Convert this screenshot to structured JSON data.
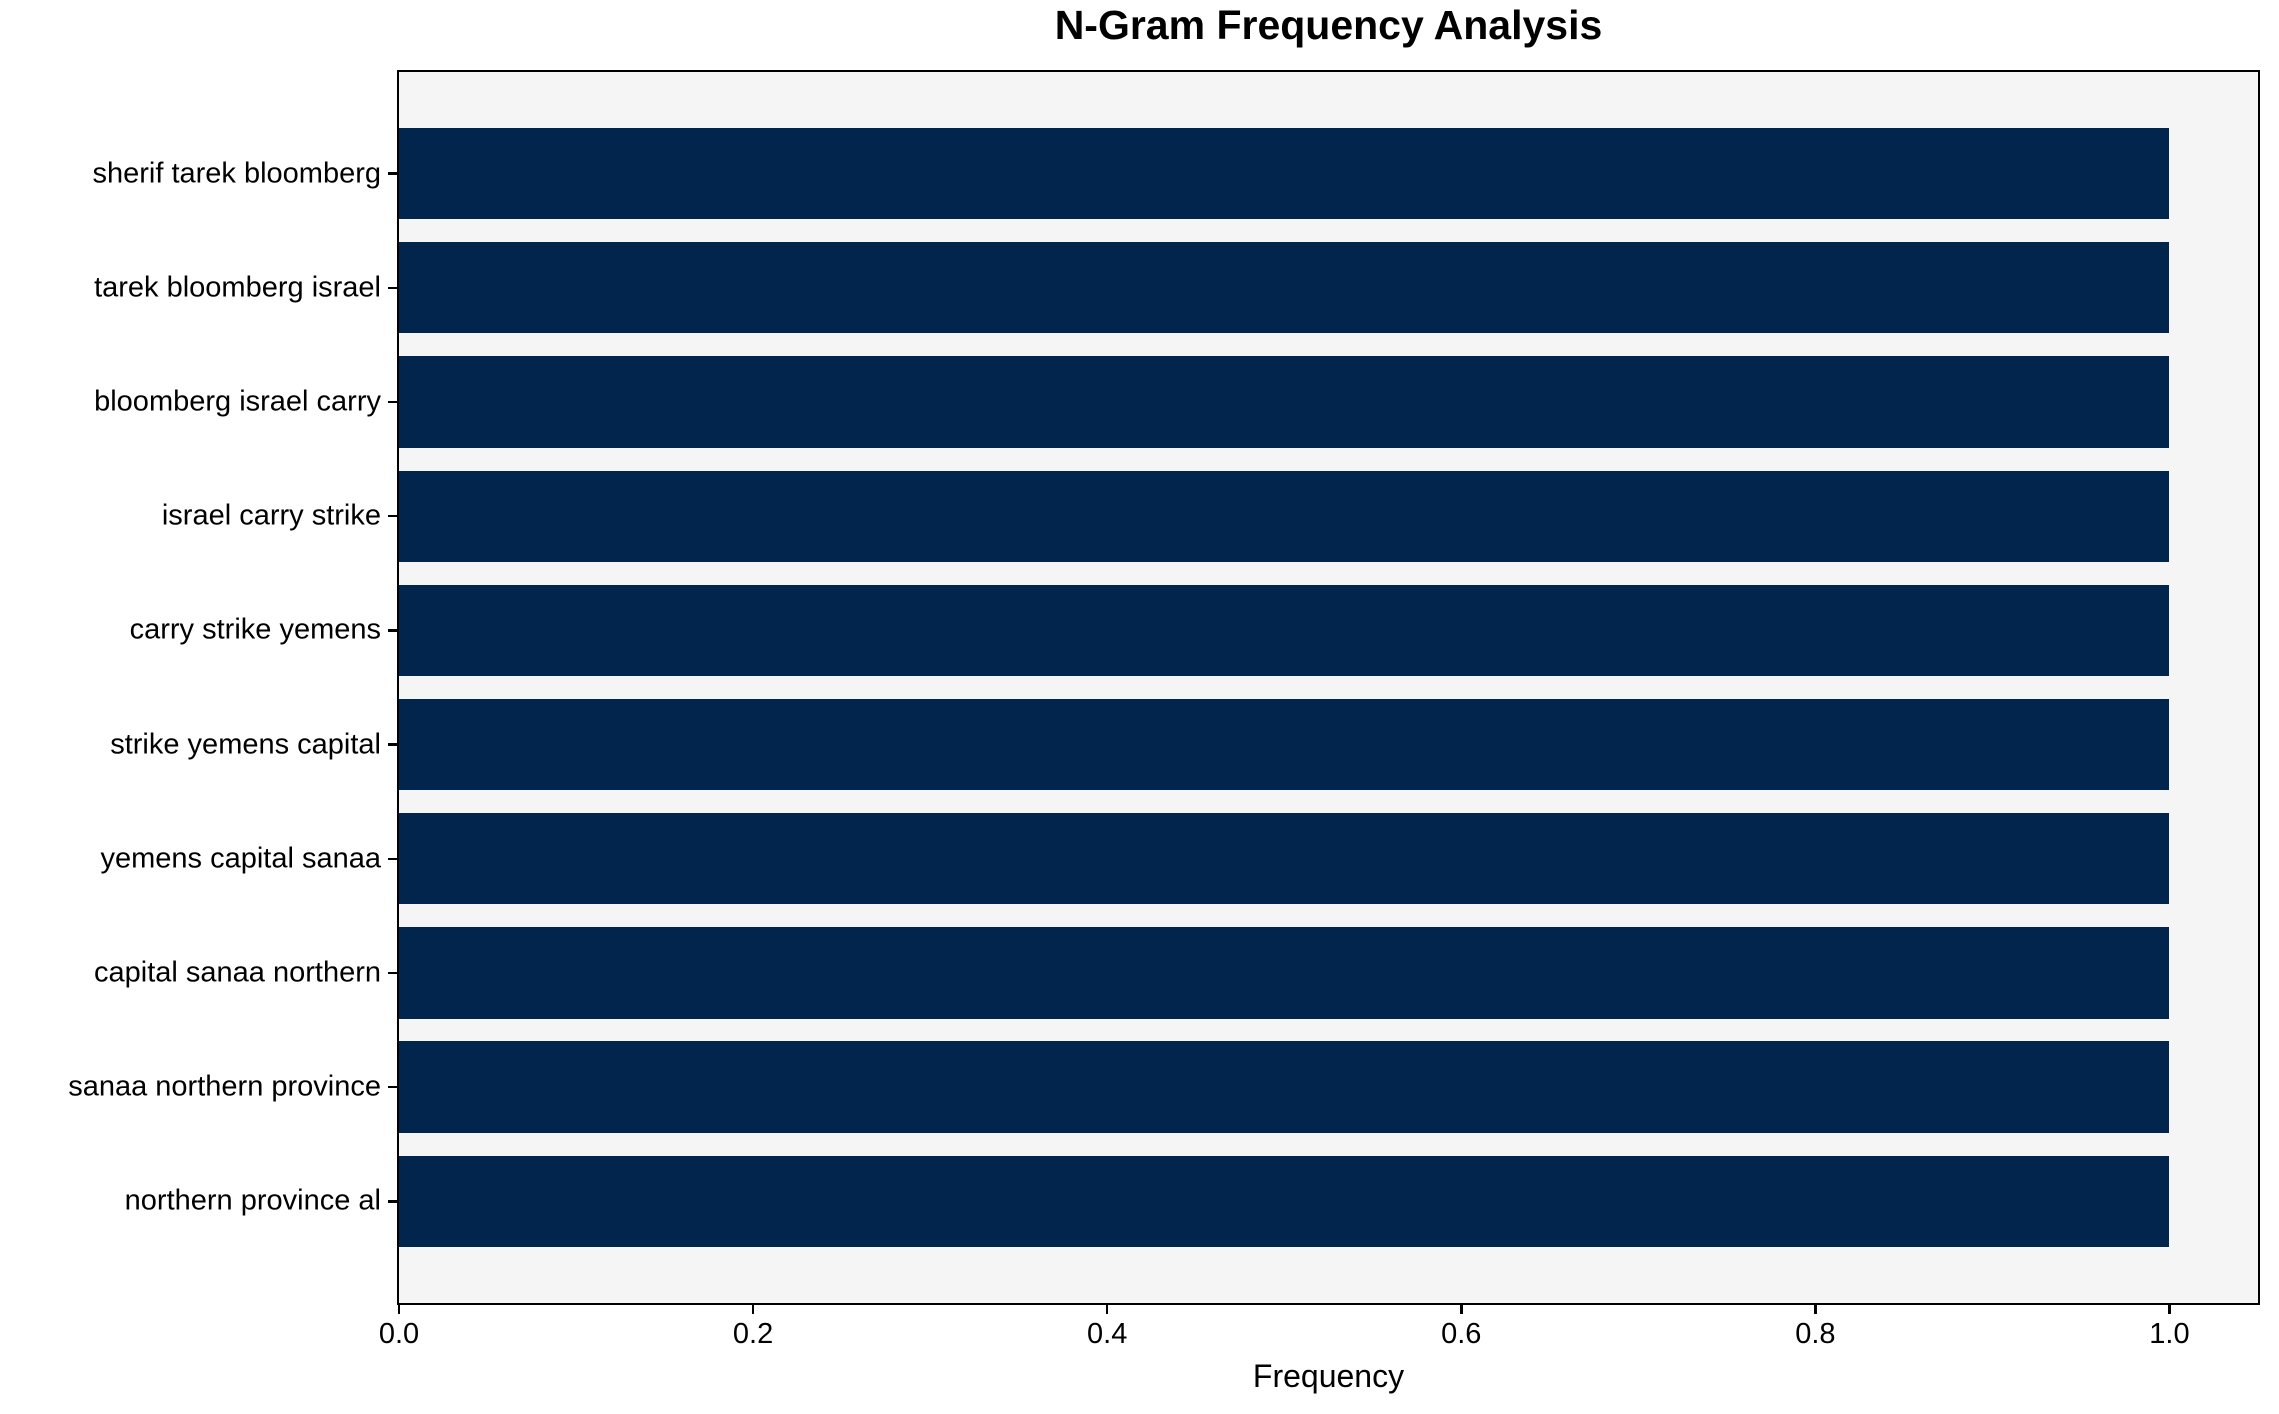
{
  "chart_data": {
    "type": "bar",
    "orientation": "horizontal",
    "title": "N-Gram Frequency Analysis",
    "xlabel": "Frequency",
    "ylabel": "",
    "categories": [
      "sherif tarek bloomberg",
      "tarek bloomberg israel",
      "bloomberg israel carry",
      "israel carry strike",
      "carry strike yemens",
      "strike yemens capital",
      "yemens capital sanaa",
      "capital sanaa northern",
      "sanaa northern province",
      "northern province al"
    ],
    "values": [
      1.0,
      1.0,
      1.0,
      1.0,
      1.0,
      1.0,
      1.0,
      1.0,
      1.0,
      1.0
    ],
    "xlim": [
      0,
      1.05
    ],
    "xticks": {
      "values": [
        0.0,
        0.2,
        0.4,
        0.6,
        0.8,
        1.0
      ],
      "labels": [
        "0.0",
        "0.2",
        "0.4",
        "0.6",
        "0.8",
        "1.0"
      ]
    },
    "grid": false,
    "legend": null,
    "bar_height_fraction": 0.8,
    "colors": {
      "bar": "#02254e",
      "plot_bg": "#f5f5f6",
      "figure_bg": "#ffffff",
      "text": "#000000",
      "spine": "#000000"
    }
  }
}
